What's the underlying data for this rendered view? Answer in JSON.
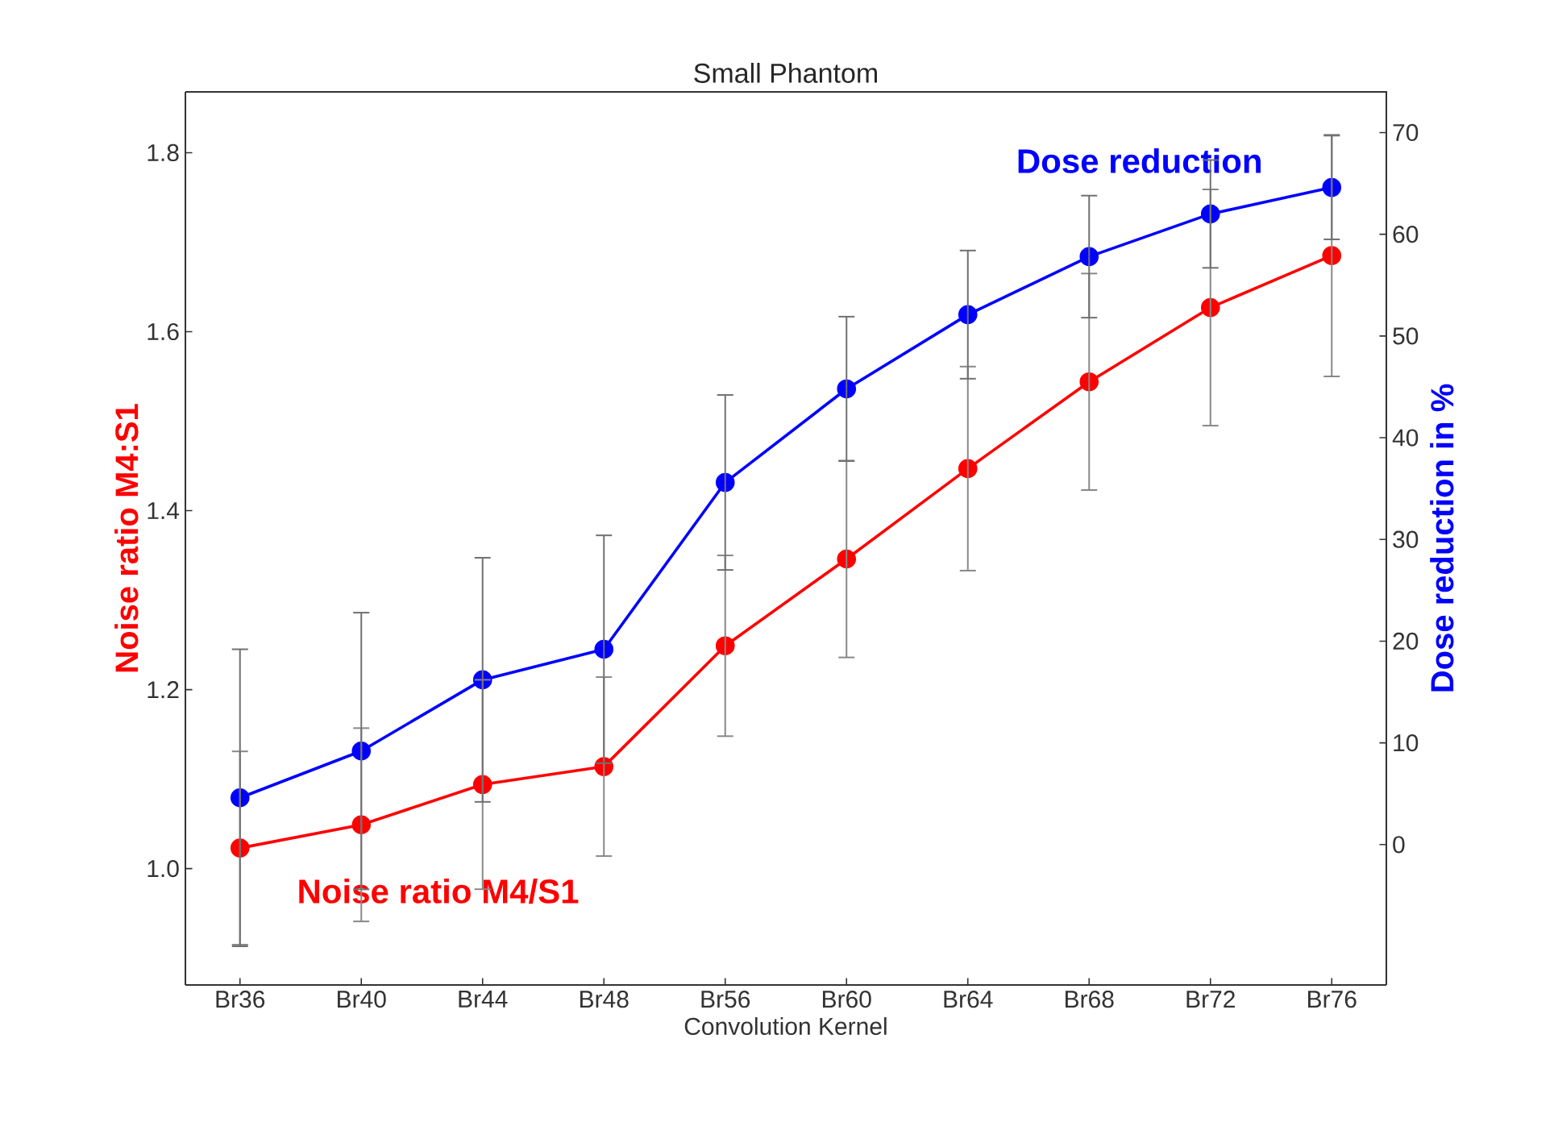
{
  "chart_data": {
    "type": "line",
    "title": "Small Phantom",
    "xlabel": "Convolution Kernel",
    "ylabel": "Noise ratio M4:S1",
    "y2label": "Dose reduction in %",
    "categories": [
      "Br36",
      "Br40",
      "Br44",
      "Br48",
      "Br56",
      "Br60",
      "Br64",
      "Br68",
      "Br72",
      "Br76"
    ],
    "series": [
      {
        "name": "Noise ratio M4/S1",
        "color": "#ff0000",
        "axis": "y",
        "values": [
          1.023,
          1.049,
          1.094,
          1.114,
          1.249,
          1.346,
          1.447,
          1.544,
          1.627,
          1.685
        ],
        "errors": [
          0.108,
          0.108,
          0.117,
          0.1,
          0.101,
          0.11,
          0.114,
          0.121,
          0.132,
          0.135
        ]
      },
      {
        "name": "Dose reduction",
        "color": "#0000ff",
        "axis": "y2",
        "values": [
          4.6,
          9.2,
          16.2,
          19.2,
          35.6,
          44.8,
          52.1,
          57.8,
          62.0,
          64.6
        ],
        "errors": [
          14.6,
          13.6,
          12.0,
          11.2,
          8.6,
          7.1,
          6.3,
          6.0,
          5.3,
          5.1
        ]
      }
    ],
    "ylim": [
      0.87,
      1.868
    ],
    "yticks": [
      {
        "value": 1.0,
        "label": "1.0"
      },
      {
        "value": 1.2,
        "label": "1.2"
      },
      {
        "value": 1.4,
        "label": "1.4"
      },
      {
        "value": 1.6,
        "label": "1.6"
      },
      {
        "value": 1.8,
        "label": "1.8"
      }
    ],
    "y2lim": [
      -13.8,
      74.0
    ],
    "y2ticks": [
      0,
      10,
      20,
      30,
      40,
      50,
      60,
      70
    ],
    "marker": "circle",
    "line_style": "solid",
    "grid": false
  }
}
